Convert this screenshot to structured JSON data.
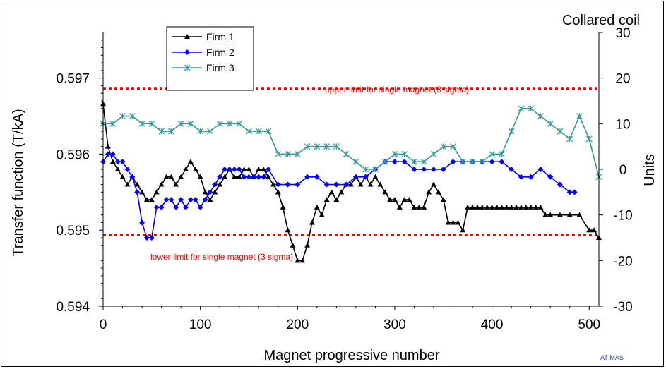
{
  "chart_data": {
    "type": "line",
    "title": "Collared coil",
    "xlabel": "Magnet progressive number",
    "ylabel_left": "Transfer function (T/kA)",
    "ylabel_right": "Units",
    "xlim": [
      0,
      510
    ],
    "ylim_left": [
      0.594,
      0.5976
    ],
    "ylim_right": [
      -30,
      30
    ],
    "xticks": [
      "0",
      "100",
      "200",
      "300",
      "400",
      "500"
    ],
    "yticks_left": [
      "0.594",
      "0.595",
      "0.596",
      "0.597"
    ],
    "yticks_right": [
      "30",
      "20",
      "10",
      "0",
      "-10",
      "-20",
      "-30"
    ],
    "grid": false,
    "legend_position": "top-left",
    "reference_lines": [
      {
        "label": "upper limit for single magnet (3 sigma)",
        "y": 0.59686,
        "color": "#ff0000"
      },
      {
        "label": "lower limit for single magnet (3 sigma)",
        "y": 0.59494,
        "color": "#ff0000"
      }
    ],
    "footer": "AT-MAS",
    "series": [
      {
        "name": "Firm 1",
        "color": "#000000",
        "marker": "triangle",
        "x": [
          0,
          5,
          10,
          15,
          20,
          25,
          30,
          35,
          40,
          45,
          50,
          55,
          60,
          65,
          70,
          75,
          80,
          85,
          90,
          95,
          100,
          105,
          110,
          115,
          120,
          125,
          130,
          135,
          140,
          145,
          150,
          155,
          160,
          165,
          170,
          175,
          180,
          185,
          190,
          195,
          200,
          205,
          210,
          215,
          220,
          225,
          230,
          235,
          240,
          245,
          250,
          255,
          260,
          265,
          270,
          275,
          280,
          285,
          290,
          295,
          300,
          305,
          310,
          315,
          320,
          325,
          330,
          335,
          340,
          345,
          350,
          355,
          360,
          365,
          370,
          375,
          380,
          385,
          390,
          395,
          400,
          405,
          410,
          415,
          420,
          425,
          430,
          435,
          440,
          445,
          450,
          455,
          460,
          470,
          480,
          490,
          500,
          505,
          510
        ],
        "y": [
          0.59666,
          0.5961,
          0.5959,
          0.5958,
          0.5957,
          0.5956,
          0.5957,
          0.5956,
          0.5955,
          0.5954,
          0.5954,
          0.5955,
          0.5956,
          0.5957,
          0.5957,
          0.5956,
          0.5957,
          0.5958,
          0.5959,
          0.5958,
          0.5957,
          0.5955,
          0.5954,
          0.5955,
          0.5956,
          0.5957,
          0.5958,
          0.5957,
          0.5957,
          0.5958,
          0.5958,
          0.5957,
          0.5958,
          0.5958,
          0.5957,
          0.5956,
          0.5955,
          0.5953,
          0.595,
          0.5948,
          0.5946,
          0.5946,
          0.5948,
          0.5951,
          0.5953,
          0.5952,
          0.5954,
          0.5955,
          0.5954,
          0.5955,
          0.5956,
          0.5956,
          0.5957,
          0.5956,
          0.5957,
          0.5956,
          0.5957,
          0.5956,
          0.5955,
          0.5954,
          0.5954,
          0.5953,
          0.5954,
          0.5954,
          0.5953,
          0.5953,
          0.5953,
          0.5955,
          0.5956,
          0.5955,
          0.5954,
          0.5951,
          0.5951,
          0.5951,
          0.595,
          0.5953,
          0.5953,
          0.5953,
          0.5953,
          0.5953,
          0.5953,
          0.5953,
          0.5953,
          0.5953,
          0.5953,
          0.5953,
          0.5953,
          0.5953,
          0.5953,
          0.5953,
          0.5953,
          0.5952,
          0.5952,
          0.5952,
          0.5952,
          0.5952,
          0.595,
          0.595,
          0.5949
        ]
      },
      {
        "name": "Firm 2",
        "color": "#0000ff",
        "marker": "diamond",
        "x": [
          0,
          5,
          10,
          15,
          20,
          25,
          30,
          35,
          40,
          45,
          50,
          55,
          60,
          65,
          70,
          75,
          80,
          85,
          90,
          95,
          100,
          105,
          110,
          115,
          120,
          125,
          130,
          135,
          140,
          145,
          150,
          155,
          160,
          165,
          170,
          180,
          190,
          200,
          210,
          220,
          230,
          240,
          250,
          260,
          270,
          280,
          290,
          300,
          310,
          320,
          330,
          340,
          350,
          360,
          370,
          380,
          390,
          400,
          410,
          420,
          430,
          440,
          450,
          460,
          470,
          480,
          485
        ],
        "y": [
          0.5959,
          0.596,
          0.596,
          0.5959,
          0.5959,
          0.5958,
          0.5957,
          0.5955,
          0.5951,
          0.5949,
          0.5949,
          0.5953,
          0.5953,
          0.5954,
          0.5954,
          0.5953,
          0.5954,
          0.5953,
          0.5954,
          0.5954,
          0.5953,
          0.5954,
          0.5955,
          0.5956,
          0.5957,
          0.5958,
          0.5958,
          0.5958,
          0.5958,
          0.5957,
          0.5957,
          0.5957,
          0.5957,
          0.5957,
          0.5958,
          0.5956,
          0.5956,
          0.5956,
          0.5957,
          0.5957,
          0.5956,
          0.5956,
          0.5956,
          0.5957,
          0.5957,
          0.5958,
          0.5959,
          0.5959,
          0.5959,
          0.5958,
          0.5958,
          0.5958,
          0.5958,
          0.5959,
          0.5959,
          0.5959,
          0.5959,
          0.5959,
          0.5959,
          0.5958,
          0.5957,
          0.5957,
          0.5958,
          0.5957,
          0.5956,
          0.5955,
          0.5955
        ]
      },
      {
        "name": "Firm 3",
        "color": "#339999",
        "marker": "star",
        "x": [
          0,
          10,
          20,
          30,
          40,
          50,
          60,
          70,
          80,
          90,
          100,
          110,
          120,
          130,
          140,
          150,
          160,
          170,
          180,
          190,
          200,
          210,
          220,
          230,
          240,
          250,
          260,
          270,
          280,
          290,
          300,
          310,
          320,
          330,
          340,
          350,
          360,
          370,
          380,
          390,
          400,
          410,
          420,
          430,
          440,
          450,
          460,
          470,
          480,
          490,
          500,
          510
        ],
        "y": [
          0.5964,
          0.5964,
          0.5965,
          0.5965,
          0.5964,
          0.5964,
          0.5963,
          0.5963,
          0.5964,
          0.5964,
          0.5963,
          0.5963,
          0.5964,
          0.5964,
          0.5964,
          0.5963,
          0.5963,
          0.5963,
          0.596,
          0.596,
          0.596,
          0.5961,
          0.5961,
          0.5961,
          0.5961,
          0.596,
          0.5959,
          0.5958,
          0.5958,
          0.5959,
          0.596,
          0.596,
          0.5959,
          0.5959,
          0.596,
          0.5961,
          0.5961,
          0.5959,
          0.5959,
          0.5959,
          0.596,
          0.596,
          0.5963,
          0.5966,
          0.5966,
          0.5965,
          0.5964,
          0.5963,
          0.5962,
          0.5965,
          0.5962,
          0.5957
        ]
      }
    ]
  }
}
